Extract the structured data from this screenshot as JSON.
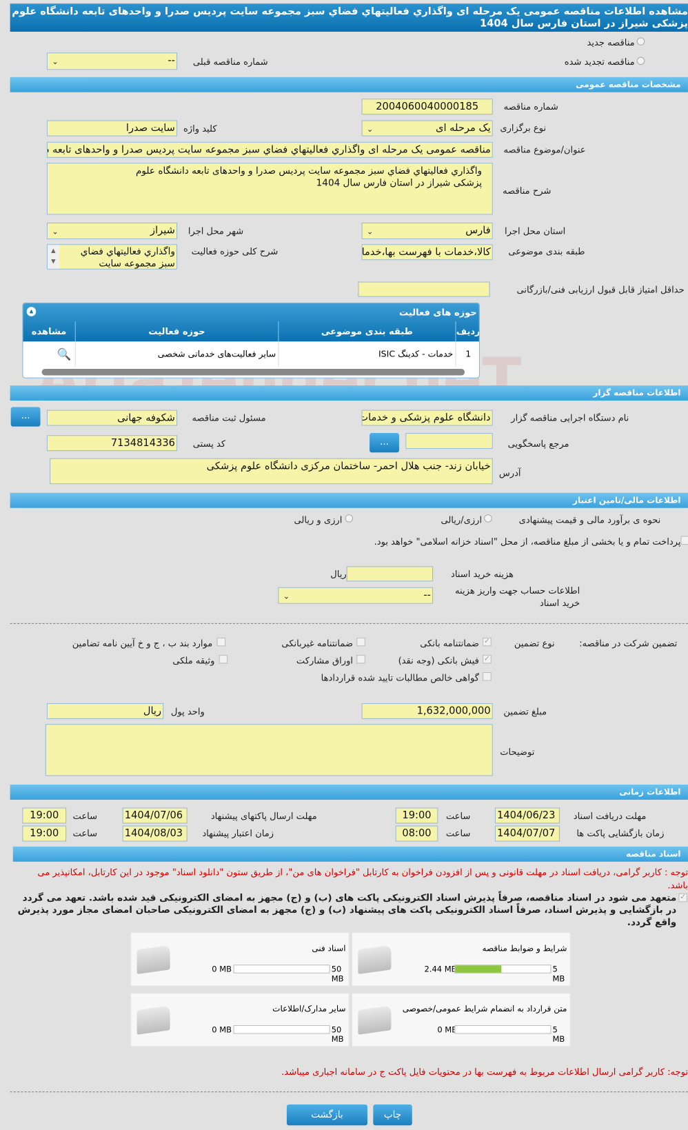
{
  "title": "مشاهده اطلاعات مناقصه عمومی یک مرحله ای واگذاري فعالیتهاي فضاي سبز مجموعه سایت پردیس صدرا و واحدهای تابعه دانشگاه علوم پزشکی شیراز در استان فارس سال 1404",
  "tender_type": {
    "new": "مناقصه جدید",
    "renewed": "مناقصه تجدید شده",
    "prev_label": "شماره مناقصه قبلی",
    "prev_value": "--"
  },
  "general": {
    "header": "مشخصات مناقصه عمومی",
    "number_label": "شماره مناقصه",
    "number": "2004060040000185",
    "keyword_label": "کلید واژه",
    "keyword": "سایت صدرا",
    "type_label": "نوع برگزاری",
    "type": "یک مرحله ای",
    "subject_label": "عنوان/موضوع مناقصه",
    "subject": "مناقصه عمومی یک مرحله ای واگذاري فعالیتهاي فضاي سبز مجموعه سایت پردیس صدرا  و واحدهای تابعه دانشگاه علوم پزشکی",
    "desc_label": "شرح مناقصه",
    "desc": "واگذاري فعالیتهاي فضاي سبز مجموعه سایت پردیس صدرا  و واحدهای تابعه دانشگاه علوم پزشکی شیراز در استان فارس سال 1404",
    "province_label": "استان محل اجرا",
    "province": "فارس",
    "city_label": "شهر محل اجرا",
    "city": "شیراز",
    "category_label": "طبقه بندی موضوعی",
    "category": "کالا،خدمات با فهرست بها،خدمات",
    "scope_label": "شرح کلی حوزه فعالیت",
    "scope": "واگذاري فعالیتهاي فضاي سبز مجموعه سایت",
    "min_score_label": "حداقل امتیاز قابل قبول ارزیابی فنی/بازرگانی",
    "min_score": ""
  },
  "activities": {
    "header": "حوزه های فعالیت",
    "columns": [
      "ردیف",
      "طبقه بندی موضوعی",
      "حوزه فعالیت",
      "مشاهده"
    ],
    "rows": [
      {
        "index": "1",
        "category": "خدمات - کدینگ ISIC",
        "activity": "سایر فعالیت‌های خدماتی شخصی"
      }
    ]
  },
  "organizer": {
    "header": "اطلاعات مناقصه گزار",
    "org_label": "نام دستگاه اجرایی مناقصه گزار",
    "org": "دانشگاه علوم پزشکی و خدمات بهداشتی درمانی شیراز",
    "responsible_label": "مسئول ثبت مناقصه",
    "responsible": "شکوفه جهانی",
    "reference_label": "مرجع پاسخگویی",
    "reference": "",
    "postal_label": "کد پستی",
    "postal": "7134814336",
    "address_label": "آدرس",
    "address": "خیابان زند- جنب هلال احمر- ساختمان مرکزی دانشگاه علوم پزشکی",
    "more_button": "..."
  },
  "finance": {
    "header": "اطلاعات مالی/تامین اعتبار",
    "estimate_label": "نحوه ی برآورد مالی و قیمت پیشنهادی",
    "opt1": "ارزی/ریالی",
    "opt2": "ارزی و ریالی",
    "treasury_text": "پرداخت تمام و یا بخشی از مبلغ مناقصه، از محل \"اسناد خزانه اسلامی\" خواهد بود.",
    "doc_cost_label": "هزینه خرید اسناد",
    "doc_cost": "",
    "currency": "ریال",
    "account_label": "اطلاعات حساب جهت واریز هزینه خرید اسناد",
    "account": "--"
  },
  "guarantee": {
    "label": "تضمین شرکت در مناقصه:",
    "type_label": "نوع تضمین",
    "options": [
      {
        "label": "ضمانتنامه بانکی",
        "checked": true
      },
      {
        "label": "ضمانتنامه غیربانکی",
        "checked": false
      },
      {
        "label": "موارد بند ب ، ج و خ آیین نامه تضامین",
        "checked": false
      },
      {
        "label": "فیش بانکی (وجه نقد)",
        "checked": true
      },
      {
        "label": "اوراق مشارکت",
        "checked": false
      },
      {
        "label": "وثیقه ملکی",
        "checked": false
      },
      {
        "label": "گواهی خالص مطالبات تایید شده قراردادها",
        "checked": false
      }
    ],
    "amount_label": "مبلغ تضمین",
    "amount": "1,632,000,000",
    "unit_label": "واحد پول",
    "unit": "ریال",
    "notes_label": "توضیحات",
    "notes": ""
  },
  "timing": {
    "header": "اطلاعات زمانی",
    "hour": "ساعت",
    "doc_deadline_label": "مهلت دریافت اسناد",
    "doc_deadline": "1404/06/23",
    "doc_deadline_time": "19:00",
    "submit_label": "مهلت ارسال پاکتهای پیشنهاد",
    "submit": "1404/07/06",
    "submit_time": "19:00",
    "opening_label": "زمان بازگشایی پاکت ها",
    "opening": "1404/07/07",
    "opening_time": "08:00",
    "validity_label": "زمان اعتبار پیشنهاد",
    "validity": "1404/08/03",
    "validity_time": "19:00"
  },
  "documents": {
    "header": "اسناد مناقصه",
    "note": "توجه : کاربر گرامی، دریافت اسناد در مهلت قانونی و پس از افزودن فراخوان به کارتابل \"فراخوان های من\"، از طریق ستون \"دانلود اسناد\" موجود در این کارتابل، امکانپذیر می باشد.",
    "commitment": "متعهد می شود در اسناد مناقصه، صرفاً پذیرش اسناد الکترونیکی پاکت های (ب) و (ج) مجهز به امضای الکترونیکی قید شده باشد. تعهد می گردد در بازگشایی و پذیرش اسناد، صرفاً اسناد الکترونیکی پاکت های پیشنهاد (ب) و (ج) مجهز به امضای الکترونیکی صاحبان امضای مجاز مورد پذیرش واقع گردد.",
    "files": [
      {
        "name": "شرایط و ضوابط مناقصه",
        "current": "2.44 MB",
        "max": "5 MB",
        "percent": 48.8
      },
      {
        "name": "اسناد فنی",
        "current": "0 MB",
        "max": "50 MB",
        "percent": 0
      },
      {
        "name": "متن قرارداد به انضمام شرایط عمومی/خصوصی",
        "current": "0 MB",
        "max": "5 MB",
        "percent": 0
      },
      {
        "name": "سایر مدارک/اطلاعات",
        "current": "0 MB",
        "max": "50 MB",
        "percent": 0
      }
    ],
    "footer_note": "توجه: کاربر گرامی ارسال اطلاعات مربوط به فهرست بها در محتویات فایل پاکت ج در سامانه اجباری میباشد."
  },
  "buttons": {
    "print": "چاپ",
    "back": "بازگشت"
  },
  "watermark": "AriaTender.neT",
  "colors": {
    "header": "#0a6fae",
    "section": "#3aa2dc",
    "input": "#f6f4a8",
    "note": "#d40000"
  }
}
